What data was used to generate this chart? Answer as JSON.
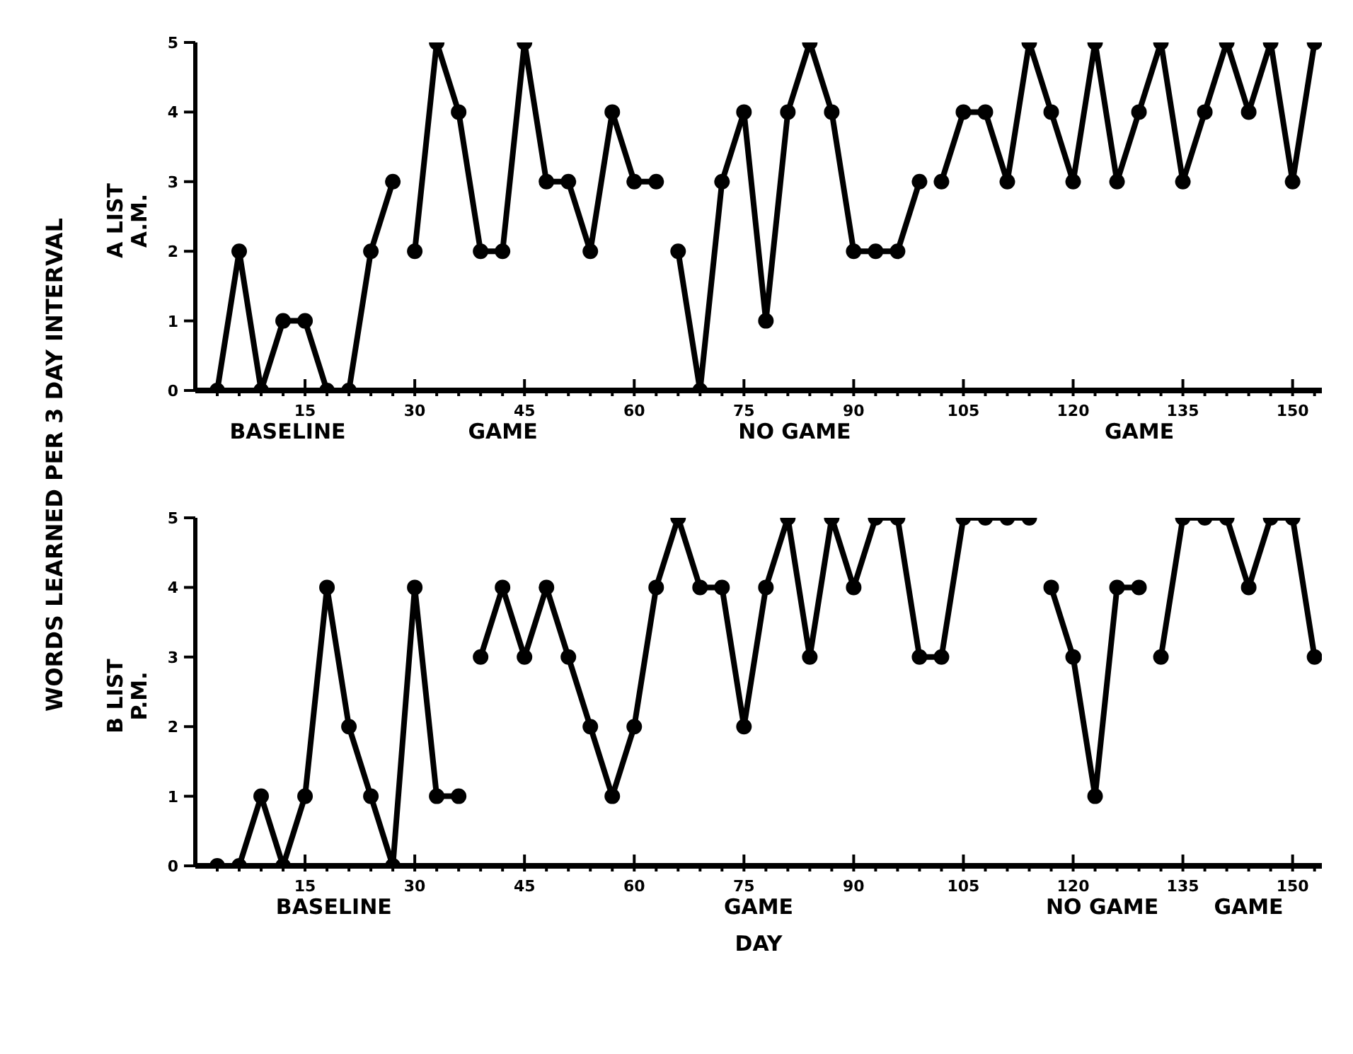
{
  "chart_data": [
    {
      "type": "line",
      "ylabel": "A LIST\nA.M.",
      "xlim": [
        0,
        154
      ],
      "ylim": [
        0,
        5
      ],
      "yticks": [
        0,
        1,
        2,
        3,
        4,
        5
      ],
      "xticks": [
        {
          "value": 3,
          "label": null
        },
        {
          "value": 6,
          "label": null
        },
        {
          "value": 9,
          "label": null
        },
        {
          "value": 12,
          "label": null
        },
        15,
        {
          "value": 18,
          "label": null
        },
        {
          "value": 21,
          "label": null
        },
        {
          "value": 24,
          "label": null
        },
        {
          "value": 27,
          "label": null
        },
        30,
        {
          "value": 33,
          "label": null
        },
        {
          "value": 36,
          "label": null
        },
        {
          "value": 39,
          "label": null
        },
        {
          "value": 42,
          "label": null
        },
        45,
        {
          "value": 48,
          "label": null
        },
        {
          "value": 51,
          "label": null
        },
        {
          "value": 54,
          "label": null
        },
        {
          "value": 57,
          "label": null
        },
        60,
        {
          "value": 63,
          "label": null
        },
        {
          "value": 66,
          "label": null
        },
        {
          "value": 69,
          "label": null
        },
        {
          "value": 72,
          "label": null
        },
        75,
        {
          "value": 78,
          "label": null
        },
        {
          "value": 81,
          "label": null
        },
        {
          "value": 84,
          "label": null
        },
        {
          "value": 87,
          "label": null
        },
        90,
        {
          "value": 93,
          "label": null
        },
        {
          "value": 96,
          "label": null
        },
        {
          "value": 99,
          "label": null
        },
        {
          "value": 102,
          "label": null
        },
        105,
        {
          "value": 108,
          "label": null
        },
        {
          "value": 111,
          "label": null
        },
        {
          "value": 114,
          "label": null
        },
        {
          "value": 117,
          "label": null
        },
        120,
        {
          "value": 123,
          "label": null
        },
        {
          "value": 126,
          "label": null
        },
        {
          "value": 129,
          "label": null
        },
        {
          "value": 132,
          "label": null
        },
        135,
        {
          "value": 138,
          "label": null
        },
        {
          "value": 141,
          "label": null
        },
        {
          "value": 144,
          "label": null
        },
        {
          "value": 147,
          "label": null
        },
        150,
        {
          "value": 153,
          "label": null
        }
      ],
      "marker": "circle",
      "line_style": "solid",
      "series": [
        {
          "color": "#000000",
          "x": [
            3,
            6,
            9,
            12,
            15,
            18,
            21,
            24,
            27
          ],
          "values": [
            0,
            2,
            0,
            1,
            1,
            0,
            0,
            2,
            3
          ]
        },
        {
          "color": "#000000",
          "x": [
            30,
            33,
            36,
            39,
            42,
            45,
            48,
            51,
            54,
            57,
            60,
            63
          ],
          "values": [
            2,
            5,
            4,
            2,
            2,
            5,
            3,
            3,
            2,
            4,
            3,
            3
          ]
        },
        {
          "color": "#000000",
          "x": [
            66,
            69,
            72,
            75,
            78,
            81,
            84,
            87,
            90,
            93,
            96,
            99
          ],
          "values": [
            2,
            0,
            3,
            4,
            1,
            4,
            5,
            4,
            2,
            2,
            2,
            3
          ]
        },
        {
          "color": "#000000",
          "x": [
            102,
            105,
            108,
            111,
            114,
            117,
            120,
            123,
            126,
            129,
            132,
            135,
            138,
            141,
            144,
            147,
            150,
            153
          ],
          "values": [
            3,
            4,
            4,
            3,
            5,
            4,
            3,
            5,
            3,
            4,
            5,
            3,
            4,
            5,
            4,
            5,
            3,
            5
          ]
        }
      ],
      "annotations": [
        "WORDS LEARNED PER 3 DAY INTERVAL",
        "BASELINE",
        "GAME",
        "NO GAME",
        "GAME"
      ]
    },
    {
      "type": "line",
      "ylabel": "B LIST\nP.M.",
      "xlabel": "DAY",
      "xlim": [
        0,
        154
      ],
      "ylim": [
        0,
        5
      ],
      "yticks": [
        0,
        1,
        2,
        3,
        4,
        5
      ],
      "xticks": [
        {
          "value": 3,
          "label": null
        },
        {
          "value": 6,
          "label": null
        },
        {
          "value": 9,
          "label": null
        },
        {
          "value": 12,
          "label": null
        },
        15,
        {
          "value": 18,
          "label": null
        },
        {
          "value": 21,
          "label": null
        },
        {
          "value": 24,
          "label": null
        },
        {
          "value": 27,
          "label": null
        },
        30,
        {
          "value": 33,
          "label": null
        },
        {
          "value": 36,
          "label": null
        },
        {
          "value": 39,
          "label": null
        },
        {
          "value": 42,
          "label": null
        },
        45,
        {
          "value": 48,
          "label": null
        },
        {
          "value": 51,
          "label": null
        },
        {
          "value": 54,
          "label": null
        },
        {
          "value": 57,
          "label": null
        },
        60,
        {
          "value": 63,
          "label": null
        },
        {
          "value": 66,
          "label": null
        },
        {
          "value": 69,
          "label": null
        },
        {
          "value": 72,
          "label": null
        },
        75,
        {
          "value": 78,
          "label": null
        },
        {
          "value": 81,
          "label": null
        },
        {
          "value": 84,
          "label": null
        },
        {
          "value": 87,
          "label": null
        },
        90,
        {
          "value": 93,
          "label": null
        },
        {
          "value": 96,
          "label": null
        },
        {
          "value": 99,
          "label": null
        },
        {
          "value": 102,
          "label": null
        },
        105,
        {
          "value": 108,
          "label": null
        },
        {
          "value": 111,
          "label": null
        },
        {
          "value": 114,
          "label": null
        },
        {
          "value": 117,
          "label": null
        },
        120,
        {
          "value": 123,
          "label": null
        },
        {
          "value": 126,
          "label": null
        },
        {
          "value": 129,
          "label": null
        },
        {
          "value": 132,
          "label": null
        },
        135,
        {
          "value": 138,
          "label": null
        },
        {
          "value": 141,
          "label": null
        },
        {
          "value": 144,
          "label": null
        },
        {
          "value": 147,
          "label": null
        },
        150,
        {
          "value": 153,
          "label": null
        }
      ],
      "marker": "circle",
      "line_style": "solid",
      "series": [
        {
          "color": "#000000",
          "x": [
            3,
            6,
            9,
            12,
            15,
            18,
            21,
            24,
            27,
            30,
            33,
            36
          ],
          "values": [
            0,
            0,
            1,
            0,
            1,
            4,
            2,
            1,
            0,
            4,
            1,
            1
          ]
        },
        {
          "color": "#000000",
          "x": [
            39,
            42,
            45,
            48,
            51,
            54,
            57,
            60,
            63,
            66,
            69,
            72,
            75,
            78,
            81,
            84,
            87,
            90,
            93,
            96,
            99,
            102,
            105,
            108,
            111,
            114
          ],
          "values": [
            3,
            4,
            3,
            4,
            3,
            2,
            1,
            2,
            4,
            5,
            4,
            4,
            2,
            4,
            5,
            3,
            5,
            4,
            5,
            5,
            3,
            3,
            5,
            5,
            5,
            5
          ]
        },
        {
          "color": "#000000",
          "x": [
            117,
            120,
            123,
            126,
            129
          ],
          "values": [
            4,
            3,
            1,
            4,
            4
          ]
        },
        {
          "color": "#000000",
          "x": [
            132,
            135,
            138,
            141,
            144,
            147,
            150,
            153
          ],
          "values": [
            3,
            5,
            5,
            5,
            4,
            5,
            5,
            3
          ]
        }
      ],
      "annotations": [
        "BASELINE",
        "GAME",
        "NO GAME",
        "GAME"
      ]
    }
  ]
}
